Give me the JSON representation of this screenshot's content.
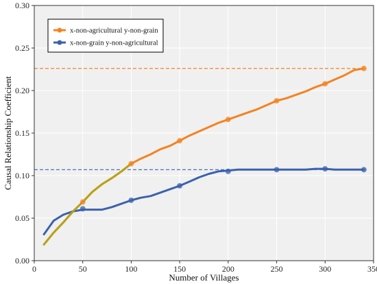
{
  "chart_data": {
    "type": "line",
    "xlabel": "Number of Villages",
    "ylabel": "Causal Relationship Coefficient",
    "xlim": [
      0,
      350
    ],
    "ylim": [
      0,
      0.3
    ],
    "xticks": [
      0,
      50,
      100,
      150,
      200,
      250,
      300,
      350
    ],
    "yticks": [
      0.0,
      0.05,
      0.1,
      0.15,
      0.2,
      0.25,
      0.3
    ],
    "xtick_labels": [
      "0",
      "50",
      "100",
      "150",
      "200",
      "250",
      "300",
      "350"
    ],
    "ytick_labels": [
      "0.00",
      "0.05",
      "0.10",
      "0.15",
      "0.20",
      "0.25",
      "0.30"
    ],
    "grid": true,
    "legend_position": "top-left",
    "series": [
      {
        "name": "x-non-agricultural y-non-grain",
        "color": "#f58220",
        "x": [
          10,
          20,
          30,
          40,
          50,
          60,
          70,
          80,
          90,
          100,
          110,
          120,
          130,
          140,
          150,
          160,
          170,
          180,
          190,
          200,
          210,
          220,
          230,
          240,
          250,
          260,
          270,
          280,
          290,
          300,
          310,
          320,
          330,
          340
        ],
        "y": [
          0.019,
          0.033,
          0.045,
          0.058,
          0.069,
          0.081,
          0.09,
          0.097,
          0.105,
          0.114,
          0.12,
          0.125,
          0.131,
          0.135,
          0.141,
          0.147,
          0.152,
          0.157,
          0.162,
          0.166,
          0.17,
          0.174,
          0.178,
          0.183,
          0.188,
          0.191,
          0.195,
          0.199,
          0.204,
          0.208,
          0.213,
          0.218,
          0.224,
          0.226
        ],
        "marker_x": [
          50,
          100,
          150,
          200,
          250,
          300,
          340
        ],
        "marker_y": [
          0.069,
          0.114,
          0.141,
          0.166,
          0.188,
          0.208,
          0.226
        ],
        "reference_y": 0.226
      },
      {
        "name": "x-non-grain y-non-agricultural",
        "color": "#3a62ad",
        "x": [
          10,
          20,
          30,
          40,
          50,
          60,
          70,
          80,
          90,
          100,
          110,
          120,
          130,
          140,
          150,
          160,
          170,
          180,
          190,
          200,
          210,
          220,
          230,
          240,
          250,
          260,
          270,
          280,
          290,
          300,
          310,
          320,
          330,
          340
        ],
        "y": [
          0.031,
          0.047,
          0.054,
          0.058,
          0.06,
          0.06,
          0.06,
          0.063,
          0.067,
          0.071,
          0.074,
          0.076,
          0.08,
          0.084,
          0.088,
          0.093,
          0.098,
          0.102,
          0.105,
          0.106,
          0.107,
          0.107,
          0.107,
          0.107,
          0.107,
          0.107,
          0.107,
          0.107,
          0.108,
          0.108,
          0.107,
          0.107,
          0.107,
          0.107
        ],
        "marker_x": [
          50,
          100,
          150,
          200,
          250,
          300,
          340
        ],
        "marker_y": [
          0.061,
          0.071,
          0.088,
          0.105,
          0.107,
          0.108,
          0.107
        ],
        "reference_y": 0.107
      }
    ],
    "overlap_color": "#b6a318"
  }
}
